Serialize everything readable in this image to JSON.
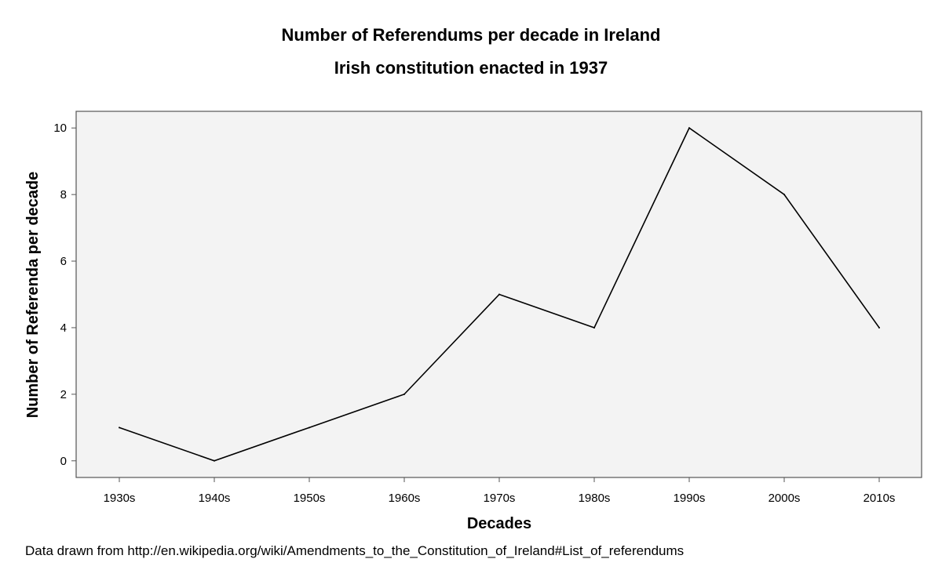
{
  "chart_data": {
    "type": "line",
    "title": "Number of Referendums per decade in Ireland",
    "subtitle": "Irish constitution enacted in 1937",
    "xlabel": "Decades",
    "ylabel": "Number of Referenda per decade",
    "categories": [
      "1930s",
      "1940s",
      "1950s",
      "1960s",
      "1970s",
      "1980s",
      "1990s",
      "2000s",
      "2010s"
    ],
    "values": [
      1,
      0,
      1,
      2,
      5,
      4,
      10,
      8,
      4
    ],
    "ylim": [
      -0.5,
      10.5
    ],
    "yticks": [
      0,
      2,
      4,
      6,
      8,
      10
    ],
    "grid": false,
    "legend": "none",
    "colors": {
      "plot_background": "#f3f3f3",
      "line": "#000000",
      "axis": "#555555"
    }
  },
  "footnote": "Data drawn from http://en.wikipedia.org/wiki/Amendments_to_the_Constitution_of_Ireland#List_of_referendums"
}
